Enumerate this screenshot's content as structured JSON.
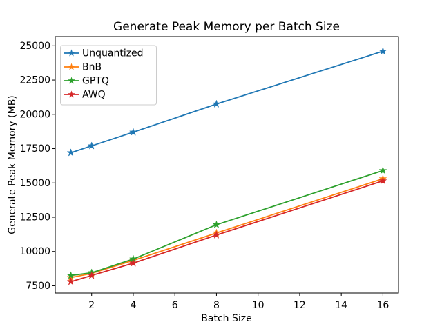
{
  "figure": {
    "background": "#ffffff",
    "axes_edge_color": "#000000",
    "legend_border_color": "#cccccc",
    "legend_background": "#ffffff"
  },
  "chart_data": {
    "type": "line",
    "title": "Generate Peak Memory per Batch Size",
    "xlabel": "Batch Size",
    "ylabel": "Generate Peak Memory (MB)",
    "x": [
      1,
      2,
      4,
      8,
      16
    ],
    "series": [
      {
        "name": "Unquantized",
        "color": "#1f77b4",
        "marker": "star",
        "values": [
          17200,
          17700,
          18700,
          20750,
          24600
        ]
      },
      {
        "name": "BnB",
        "color": "#ff7f0e",
        "marker": "star",
        "values": [
          8100,
          8400,
          9350,
          11350,
          15300
        ]
      },
      {
        "name": "GPTQ",
        "color": "#2ca02c",
        "marker": "star",
        "values": [
          8250,
          8450,
          9450,
          11950,
          15900
        ]
      },
      {
        "name": "AWQ",
        "color": "#d62728",
        "marker": "star",
        "values": [
          7800,
          8250,
          9150,
          11200,
          15150
        ]
      }
    ],
    "xticks": [
      2,
      4,
      6,
      8,
      10,
      12,
      14,
      16
    ],
    "yticks": [
      7500,
      10000,
      12500,
      15000,
      17500,
      20000,
      22500,
      25000
    ],
    "xlim": [
      0.25,
      16.75
    ],
    "ylim": [
      6970,
      25670
    ],
    "grid": false,
    "legend_position": "upper-left",
    "legend_entries": [
      "Unquantized",
      "BnB",
      "GPTQ",
      "AWQ"
    ]
  }
}
